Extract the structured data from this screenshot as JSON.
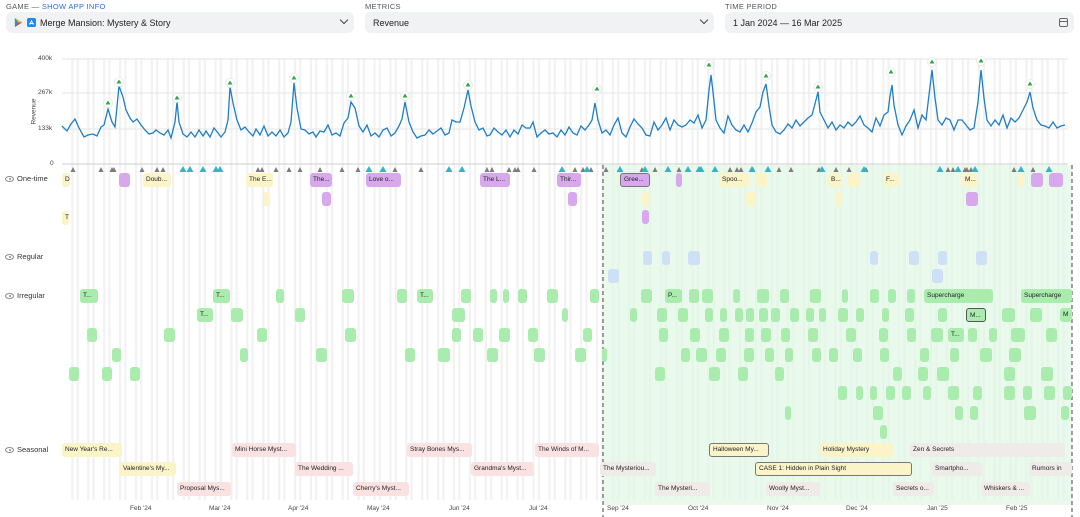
{
  "filters": {
    "game_label": "GAME —",
    "show_app_info": "SHOW APP INFO",
    "game_value": "Merge Mansion: Mystery & Story",
    "metrics_label": "METRICS",
    "metrics_value": "Revenue",
    "period_label": "TIME PERIOD",
    "period_value": "1 Jan 2024 — 16 Mar 2025"
  },
  "chart": {
    "y_axis_title": "Revenue",
    "y_ticks": [
      "400k",
      "267k",
      "133k",
      "0"
    ]
  },
  "rows": {
    "one_time": "One-time",
    "regular": "Regular",
    "irregular": "Irregular",
    "seasonal": "Seasonal"
  },
  "months": [
    "Feb '24",
    "Mar '24",
    "Apr '24",
    "May '24",
    "Jun '24",
    "Jul '24",
    "Sep '24",
    "Oct '24",
    "Nov '24",
    "Dec '24",
    "Jan '25",
    "Feb '25"
  ],
  "events": {
    "one_time": [
      "D",
      "Doub...",
      "The E...",
      "The...",
      "Love o...",
      "The L...",
      "Thir...",
      "Gree...",
      "Spoo...",
      "B...",
      "F...",
      "M...",
      "T"
    ],
    "irregular": [
      "T...",
      "T...",
      "T...",
      "T...",
      "P...",
      "Supercharge",
      "Supercharge",
      "M...",
      "T...",
      "M"
    ],
    "seasonal": [
      "New Year's Re...",
      "Valentine's My...",
      "Proposal Mys...",
      "Mini Horse Myst...",
      "The Wedding ...",
      "Cherry's Myst...",
      "Stray Bones Mys...",
      "Grandma's Myst...",
      "The Winds of M...",
      "The Mysteriou...",
      "The Mysteri...",
      "Halloween My...",
      "CASE 1: Hidden in Plain Sight",
      "Woolly Myst...",
      "Holiday Mystery",
      "Secrets o...",
      "Zen & Secrets",
      "Smartpho...",
      "Whiskers & ...",
      "Rumors in"
    ]
  }
}
